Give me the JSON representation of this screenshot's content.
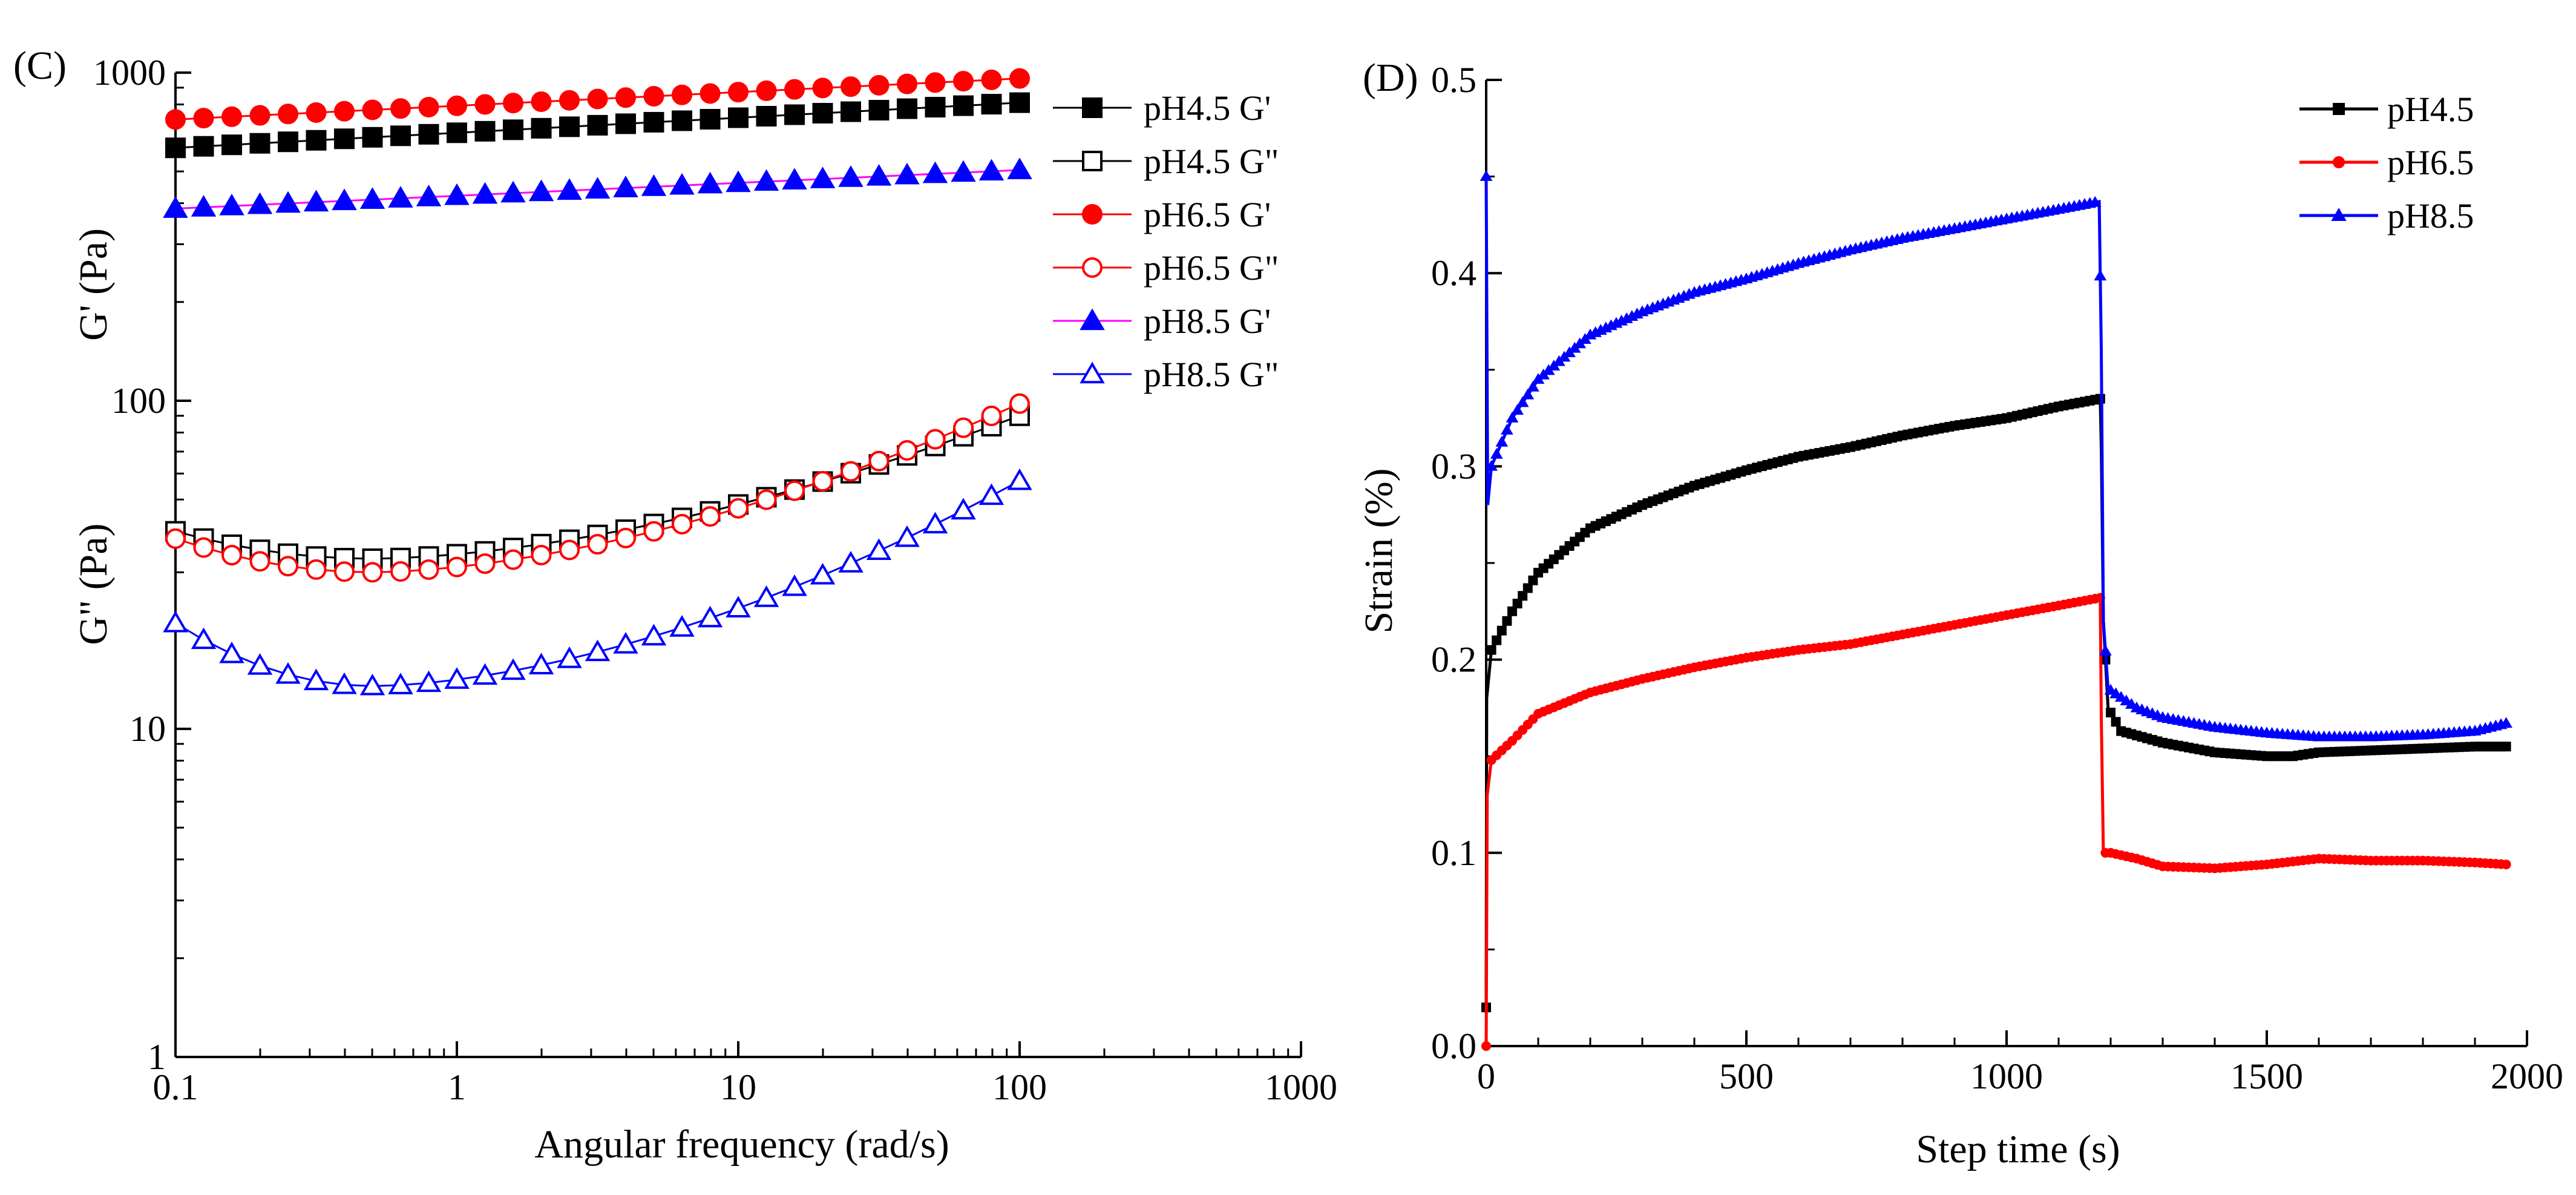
{
  "chart_data": [
    {
      "panel_label": "(C)",
      "type": "scatter",
      "xscale": "log",
      "yscale": "log",
      "xlabel": "Angular frequency (rad/s)",
      "ylabel_upper": "G' (Pa)",
      "ylabel_lower": "G\" (Pa)",
      "xlim": [
        0.1,
        1000
      ],
      "ylim": [
        1,
        1000
      ],
      "xticks": [
        "0.1",
        "1",
        "10",
        "100",
        "1000"
      ],
      "yticks": [
        "1",
        "10",
        "100",
        "1000"
      ],
      "legend_position": "top-right",
      "series": [
        {
          "name": "pH4.5 G'",
          "color": "#000000",
          "marker": "square",
          "filled": true,
          "start": 590,
          "end": 810,
          "shape": "linear"
        },
        {
          "name": "pH4.5 G\"",
          "color": "#000000",
          "marker": "square",
          "filled": false,
          "start": 40,
          "min": 33,
          "minAt": 0.5,
          "end": 90,
          "shape": "dip"
        },
        {
          "name": "pH6.5 G'",
          "color": "#ff0000",
          "marker": "circle",
          "filled": true,
          "start": 720,
          "end": 960,
          "shape": "linear"
        },
        {
          "name": "pH6.5 G\"",
          "color": "#ff0000",
          "marker": "circle",
          "filled": false,
          "start": 38,
          "min": 30,
          "minAt": 0.5,
          "end": 98,
          "shape": "dip"
        },
        {
          "name": "pH8.5 G'",
          "color": "#0000ff",
          "line_color": "#ff00ff",
          "marker": "triangle",
          "filled": true,
          "start": 385,
          "end": 505,
          "shape": "linear"
        },
        {
          "name": "pH8.5 G\"",
          "color": "#0000ff",
          "marker": "triangle",
          "filled": false,
          "start": 21,
          "min": 13.5,
          "minAt": 0.5,
          "end": 57,
          "shape": "dip"
        }
      ]
    },
    {
      "panel_label": "(D)",
      "type": "line",
      "xlabel": "Step time (s)",
      "ylabel": "Strain (%)",
      "xlim": [
        0,
        2000
      ],
      "ylim": [
        0.0,
        0.5
      ],
      "xticks": [
        "0",
        "500",
        "1000",
        "1500",
        "2000"
      ],
      "yticks": [
        "0.0",
        "0.1",
        "0.2",
        "0.3",
        "0.4",
        "0.5"
      ],
      "legend_position": "top-right",
      "series": [
        {
          "name": "pH4.5",
          "color": "#000000",
          "marker": "square",
          "points": [
            [
              0,
              0.02
            ],
            [
              1,
              0.18
            ],
            [
              10,
              0.205
            ],
            [
              50,
              0.225
            ],
            [
              100,
              0.245
            ],
            [
              200,
              0.268
            ],
            [
              300,
              0.28
            ],
            [
              400,
              0.29
            ],
            [
              500,
              0.298
            ],
            [
              600,
              0.305
            ],
            [
              700,
              0.31
            ],
            [
              800,
              0.316
            ],
            [
              900,
              0.321
            ],
            [
              1000,
              0.325
            ],
            [
              1100,
              0.331
            ],
            [
              1180,
              0.335
            ],
            [
              1182,
              0.31
            ],
            [
              1186,
              0.22
            ],
            [
              1195,
              0.175
            ],
            [
              1220,
              0.163
            ],
            [
              1300,
              0.157
            ],
            [
              1400,
              0.152
            ],
            [
              1500,
              0.15
            ],
            [
              1550,
              0.15
            ],
            [
              1600,
              0.152
            ],
            [
              1700,
              0.153
            ],
            [
              1800,
              0.154
            ],
            [
              1900,
              0.155
            ],
            [
              1960,
              0.155
            ]
          ]
        },
        {
          "name": "pH6.5",
          "color": "#ff0000",
          "marker": "circle",
          "points": [
            [
              0,
              0.0
            ],
            [
              2,
              0.13
            ],
            [
              10,
              0.148
            ],
            [
              50,
              0.158
            ],
            [
              100,
              0.172
            ],
            [
              200,
              0.183
            ],
            [
              300,
              0.19
            ],
            [
              400,
              0.196
            ],
            [
              500,
              0.201
            ],
            [
              600,
              0.205
            ],
            [
              700,
              0.208
            ],
            [
              800,
              0.213
            ],
            [
              900,
              0.218
            ],
            [
              1000,
              0.223
            ],
            [
              1100,
              0.228
            ],
            [
              1180,
              0.232
            ],
            [
              1182,
              0.17
            ],
            [
              1186,
              0.1
            ],
            [
              1200,
              0.1
            ],
            [
              1250,
              0.097
            ],
            [
              1300,
              0.093
            ],
            [
              1400,
              0.092
            ],
            [
              1500,
              0.094
            ],
            [
              1600,
              0.097
            ],
            [
              1700,
              0.096
            ],
            [
              1800,
              0.096
            ],
            [
              1900,
              0.095
            ],
            [
              1960,
              0.094
            ]
          ]
        },
        {
          "name": "pH8.5",
          "color": "#0000ff",
          "marker": "triangle",
          "points": [
            [
              0,
              0.45
            ],
            [
              3,
              0.28
            ],
            [
              10,
              0.3
            ],
            [
              50,
              0.325
            ],
            [
              100,
              0.345
            ],
            [
              200,
              0.368
            ],
            [
              300,
              0.38
            ],
            [
              400,
              0.39
            ],
            [
              500,
              0.397
            ],
            [
              600,
              0.405
            ],
            [
              700,
              0.412
            ],
            [
              800,
              0.418
            ],
            [
              900,
              0.423
            ],
            [
              1000,
              0.428
            ],
            [
              1100,
              0.433
            ],
            [
              1178,
              0.437
            ],
            [
              1182,
              0.36
            ],
            [
              1186,
              0.22
            ],
            [
              1195,
              0.185
            ],
            [
              1250,
              0.175
            ],
            [
              1300,
              0.17
            ],
            [
              1400,
              0.165
            ],
            [
              1500,
              0.162
            ],
            [
              1600,
              0.16
            ],
            [
              1700,
              0.16
            ],
            [
              1800,
              0.161
            ],
            [
              1900,
              0.163
            ],
            [
              1960,
              0.167
            ]
          ]
        }
      ]
    }
  ]
}
